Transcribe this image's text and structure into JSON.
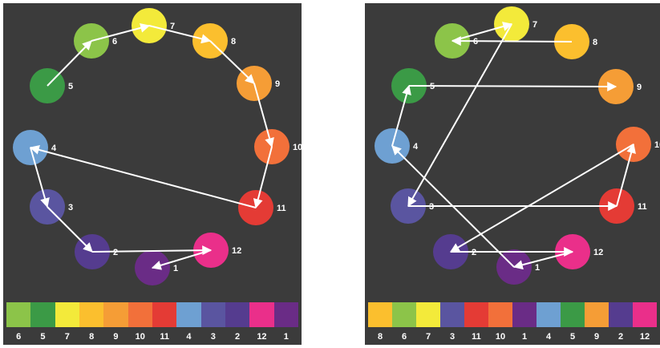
{
  "colors": {
    "1": "#6a2c86",
    "2": "#553c8f",
    "3": "#5a55a0",
    "4": "#6ea0d2",
    "5": "#3b9a46",
    "6": "#8cc449",
    "7": "#f3ea3a",
    "8": "#fbbf2e",
    "9": "#f59d36",
    "10": "#f2703a",
    "11": "#e43b35",
    "12": "#ea2f8a"
  },
  "node_labels": [
    "1",
    "2",
    "3",
    "4",
    "5",
    "6",
    "7",
    "8",
    "9",
    "10",
    "11",
    "12"
  ],
  "left_diagram": {
    "path_order": [
      "5",
      "6",
      "7",
      "8",
      "9",
      "10",
      "11",
      "4",
      "3",
      "2",
      "12",
      "1"
    ],
    "strip_order": [
      "6",
      "5",
      "7",
      "8",
      "9",
      "10",
      "11",
      "4",
      "3",
      "2",
      "12",
      "1"
    ]
  },
  "right_diagram": {
    "path_order": [
      "8",
      "6",
      "7",
      "3",
      "11",
      "10",
      "2",
      "12",
      "1",
      "4",
      "5",
      "9"
    ],
    "strip_order": [
      "8",
      "6",
      "7",
      "3",
      "11",
      "10",
      "1",
      "4",
      "5",
      "9",
      "2",
      "12"
    ]
  }
}
